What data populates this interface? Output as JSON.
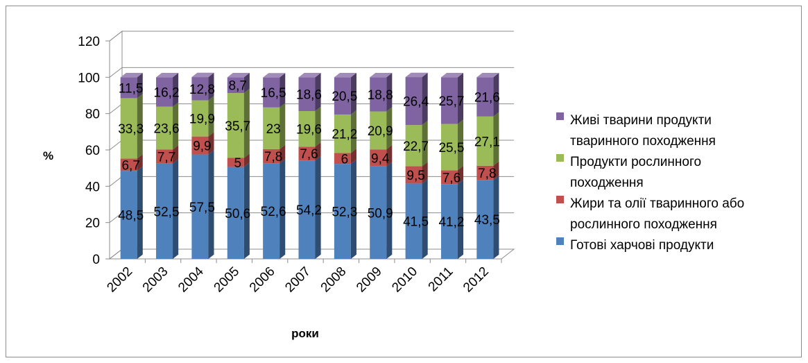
{
  "chart_data": {
    "type": "bar",
    "stacked": true,
    "three_d": true,
    "categories": [
      "2002",
      "2003",
      "2004",
      "2005",
      "2006",
      "2007",
      "2008",
      "2009",
      "2010",
      "2011",
      "2012"
    ],
    "series": [
      {
        "name": "Готові харчові продукти",
        "color": "#4f81bd",
        "values": [
          48.5,
          52.5,
          57.5,
          50.6,
          52.6,
          54.2,
          52.3,
          50.9,
          41.5,
          41.2,
          43.5
        ],
        "labels": [
          "48,5",
          "52,5",
          "57,5",
          "50,6",
          "52,6",
          "54,2",
          "52,3",
          "50,9",
          "41,5",
          "41,2",
          "43,5"
        ]
      },
      {
        "name": "Жири та олії тваринного або рослинного походження",
        "color": "#c0504d",
        "values": [
          6.7,
          7.7,
          9.9,
          5,
          7.8,
          7.6,
          6,
          9.4,
          9.5,
          7.6,
          7.8
        ],
        "labels": [
          "6,7",
          "7,7",
          "9,9",
          "5",
          "7,8",
          "7,6",
          "6",
          "9,4",
          "9,5",
          "7,6",
          "7,8"
        ]
      },
      {
        "name": "Продукти рослинного походження",
        "color": "#9bbb59",
        "values": [
          33.3,
          23.6,
          19.9,
          35.7,
          23,
          19.6,
          21.2,
          20.9,
          22.7,
          25.5,
          27.1
        ],
        "labels": [
          "33,3",
          "23,6",
          "19,9",
          "35,7",
          "23",
          "19,6",
          "21,2",
          "20,9",
          "22,7",
          "25,5",
          "27,1"
        ]
      },
      {
        "name": "Живі тварини продукти тваринного походження",
        "color": "#8064a2",
        "values": [
          11.5,
          16.2,
          12.8,
          8.7,
          16.5,
          18.6,
          20.5,
          18.8,
          26.4,
          25.7,
          21.6
        ],
        "labels": [
          "11,5",
          "16,2",
          "12,8",
          "8,7",
          "16,5",
          "18,6",
          "20,5",
          "18,8",
          "26,4",
          "25,7",
          "21,6"
        ]
      }
    ],
    "legend": {
      "placement": "right",
      "entries": [
        {
          "lines": [
            "Живі тварини продукти",
            "тваринного походження"
          ],
          "color": "#8064a2"
        },
        {
          "lines": [
            "Продукти рослинного",
            "походження"
          ],
          "color": "#9bbb59"
        },
        {
          "lines": [
            "Жири та олії тваринного або",
            "рослинного походження"
          ],
          "color": "#c0504d"
        },
        {
          "lines": [
            "Готові харчові продукти"
          ],
          "color": "#4f81bd"
        }
      ]
    },
    "xlabel": "роки",
    "ylabel": "%",
    "ylim": [
      0,
      120
    ],
    "yticks": [
      "0",
      "20",
      "40",
      "60",
      "80",
      "100",
      "120"
    ],
    "grid": true
  }
}
